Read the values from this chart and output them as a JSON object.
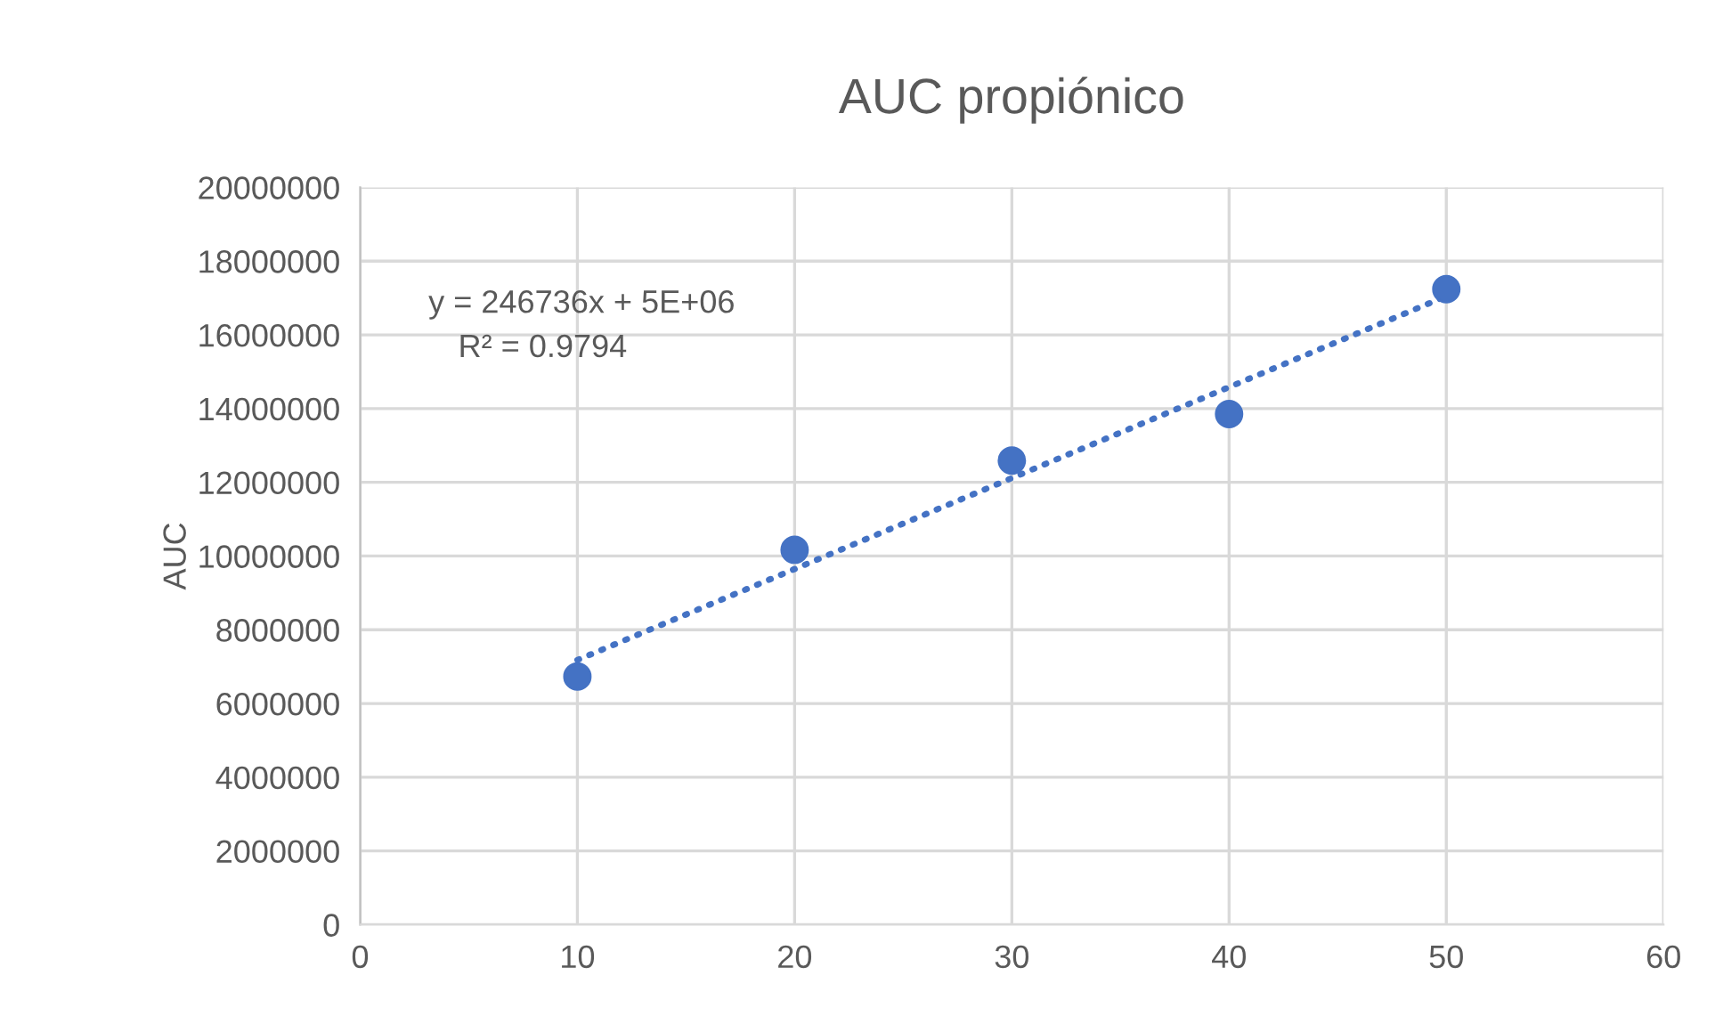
{
  "chart_data": {
    "type": "scatter",
    "title": "AUC propiónico",
    "ylabel": "AUC",
    "x": [
      10,
      20,
      30,
      40,
      50
    ],
    "series": [
      {
        "color": "#4472c4",
        "values": [
          6730000,
          10170000,
          12590000,
          13850000,
          17240000
        ],
        "marker": "circle"
      },
      {
        "type": "line",
        "color": "#4472c4",
        "x": [
          10,
          50
        ],
        "values": [
          7180000,
          17050000
        ],
        "line_style": "dotted",
        "marker": "none"
      }
    ],
    "annotations": [
      "y = 246736x + 5E+06",
      "R² = 0.9794"
    ],
    "xlim": [
      0,
      60
    ],
    "xticks": [
      0,
      10,
      20,
      30,
      40,
      50,
      60
    ],
    "ylim": [
      0,
      20000000
    ],
    "yticks": [
      0,
      2000000,
      4000000,
      6000000,
      8000000,
      10000000,
      12000000,
      14000000,
      16000000,
      18000000,
      20000000
    ],
    "grid": true,
    "legend": false
  }
}
